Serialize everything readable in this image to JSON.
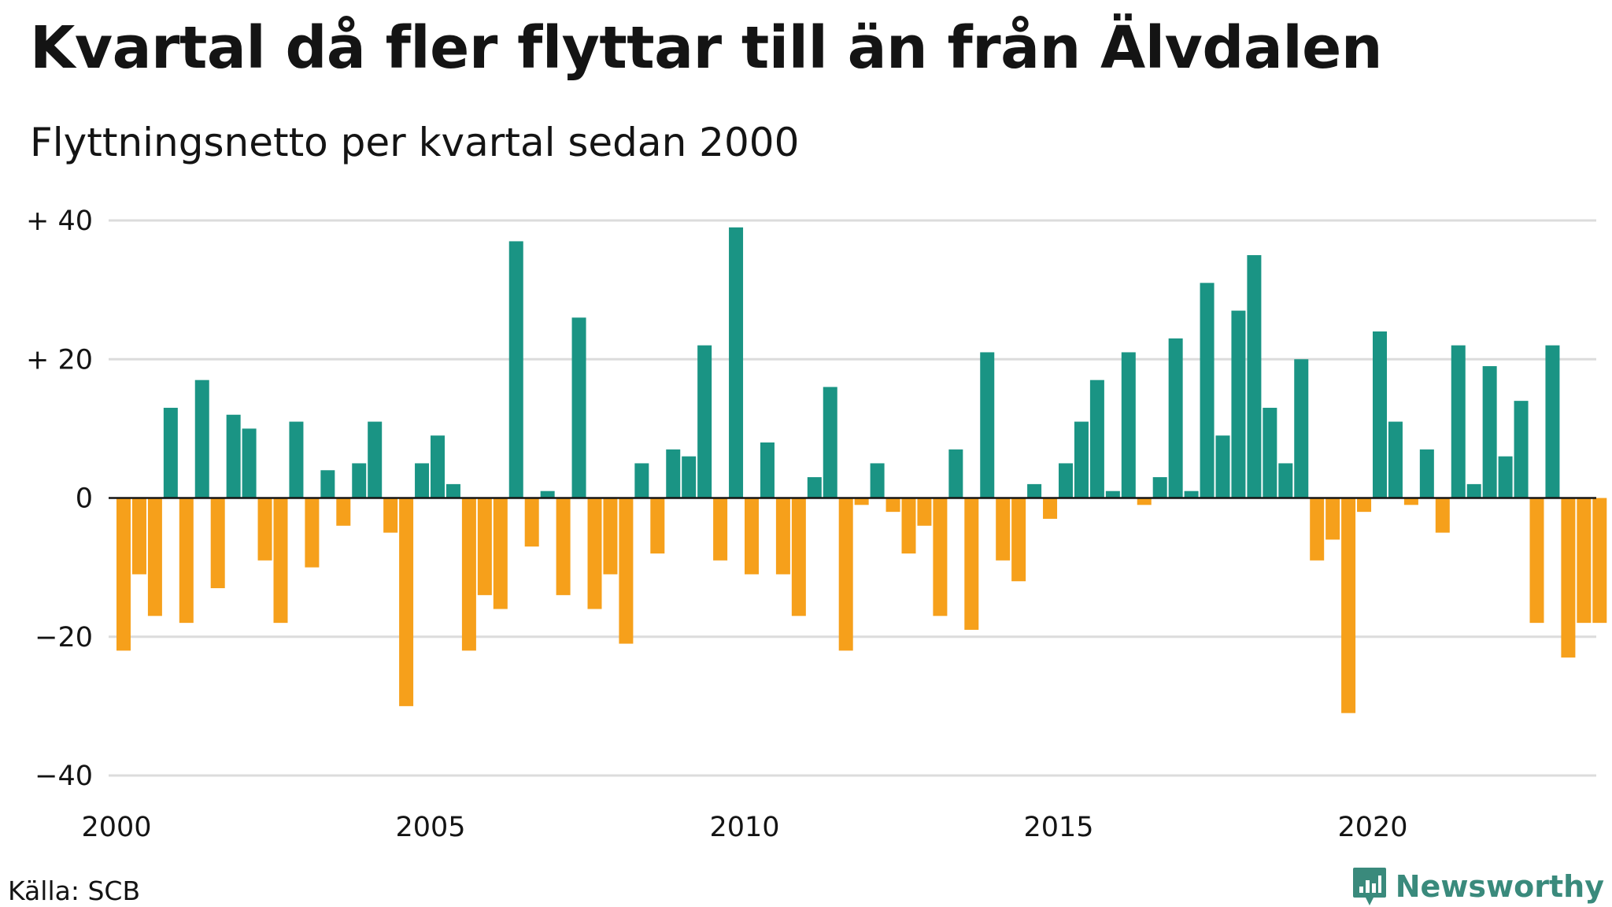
{
  "header": {
    "title": "Kvartal då fler flyttar till än från Älvdalen",
    "subtitle": "Flyttningsnetto per kvartal sedan 2000"
  },
  "footer": {
    "source": "Källa: SCB",
    "brand": "Newsworthy"
  },
  "colors": {
    "positive": "#1a9484",
    "negative": "#f6a01b",
    "grid": "#dcdcdc",
    "axis": "#141414",
    "brand": "#3a8a7c"
  },
  "icons": {
    "brand_logo": "newsworthy-logo-icon"
  },
  "chart_data": {
    "type": "bar",
    "title": "Kvartal då fler flyttar till än från Älvdalen",
    "subtitle": "Flyttningsnetto per kvartal sedan 2000",
    "xlabel": "",
    "ylabel": "",
    "ylim": [
      -40,
      40
    ],
    "y_ticks": [
      40,
      20,
      0,
      -20,
      -40
    ],
    "y_tick_labels": [
      "+ 40",
      "+ 20",
      "0",
      "−20",
      "−40"
    ],
    "x_ticks": [
      "2000",
      "2005",
      "2010",
      "2015",
      "2020"
    ],
    "x_range": [
      "2000 Q1",
      "2023 Q3"
    ],
    "grid": true,
    "legend": "none",
    "color_rule": "teal for positive values, orange for negative values",
    "categories": [
      "2000 Q1",
      "2000 Q2",
      "2000 Q3",
      "2000 Q4",
      "2001 Q1",
      "2001 Q2",
      "2001 Q3",
      "2001 Q4",
      "2002 Q1",
      "2002 Q2",
      "2002 Q3",
      "2002 Q4",
      "2003 Q1",
      "2003 Q2",
      "2003 Q3",
      "2003 Q4",
      "2004 Q1",
      "2004 Q2",
      "2004 Q3",
      "2004 Q4",
      "2005 Q1",
      "2005 Q2",
      "2005 Q3",
      "2005 Q4",
      "2006 Q1",
      "2006 Q2",
      "2006 Q3",
      "2006 Q4",
      "2007 Q1",
      "2007 Q2",
      "2007 Q3",
      "2007 Q4",
      "2008 Q1",
      "2008 Q2",
      "2008 Q3",
      "2008 Q4",
      "2009 Q1",
      "2009 Q2",
      "2009 Q3",
      "2009 Q4",
      "2010 Q1",
      "2010 Q2",
      "2010 Q3",
      "2010 Q4",
      "2011 Q1",
      "2011 Q2",
      "2011 Q3",
      "2011 Q4",
      "2012 Q1",
      "2012 Q2",
      "2012 Q3",
      "2012 Q4",
      "2013 Q1",
      "2013 Q2",
      "2013 Q3",
      "2013 Q4",
      "2014 Q1",
      "2014 Q2",
      "2014 Q3",
      "2014 Q4",
      "2015 Q1",
      "2015 Q2",
      "2015 Q3",
      "2015 Q4",
      "2016 Q1",
      "2016 Q2",
      "2016 Q3",
      "2016 Q4",
      "2017 Q1",
      "2017 Q2",
      "2017 Q3",
      "2017 Q4",
      "2018 Q1",
      "2018 Q2",
      "2018 Q3",
      "2018 Q4",
      "2019 Q1",
      "2019 Q2",
      "2019 Q3",
      "2019 Q4",
      "2020 Q1",
      "2020 Q2",
      "2020 Q3",
      "2020 Q4",
      "2021 Q1",
      "2021 Q2",
      "2021 Q3",
      "2021 Q4",
      "2022 Q1",
      "2022 Q2",
      "2022 Q3",
      "2022 Q4",
      "2023 Q1",
      "2023 Q2",
      "2023 Q3"
    ],
    "values": [
      -22,
      -11,
      -17,
      13,
      -18,
      17,
      -13,
      12,
      10,
      -9,
      -18,
      11,
      -10,
      4,
      -4,
      5,
      11,
      -5,
      -30,
      5,
      9,
      2,
      -22,
      -14,
      -16,
      37,
      -7,
      1,
      -14,
      26,
      -16,
      -11,
      -21,
      5,
      -8,
      7,
      6,
      22,
      -9,
      39,
      -11,
      8,
      -11,
      -17,
      3,
      16,
      -22,
      -1,
      5,
      -2,
      -8,
      -4,
      -17,
      7,
      -19,
      21,
      -9,
      -12,
      2,
      -3,
      5,
      11,
      17,
      1,
      21,
      -1,
      3,
      23,
      1,
      31,
      9,
      27,
      35,
      13,
      5,
      20,
      -9,
      -6,
      -31,
      -2,
      24,
      11,
      -1,
      7,
      -5,
      22,
      2,
      19,
      6,
      14,
      -18,
      22,
      -23,
      -18,
      -18
    ]
  }
}
